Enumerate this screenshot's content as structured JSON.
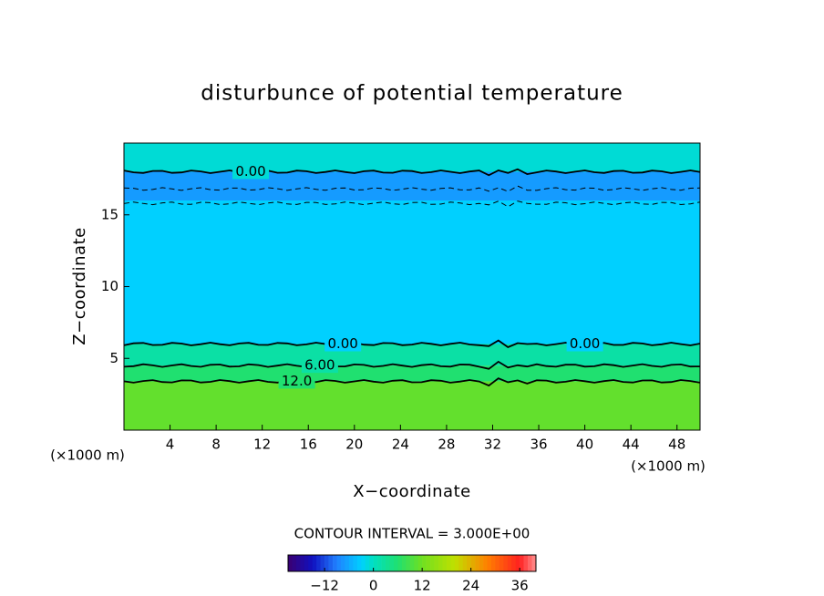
{
  "chart_data": {
    "type": "contour",
    "title": "disturbunce of potential temperature",
    "x_label": "X−coordinate",
    "y_label": "Z−coordinate",
    "x_unit": "(×1000 m)",
    "y_unit": "(×1000 m)",
    "xlim": [
      0,
      50
    ],
    "ylim": [
      0,
      20
    ],
    "xticks": [
      4,
      8,
      12,
      16,
      20,
      24,
      28,
      32,
      36,
      40,
      44,
      48
    ],
    "yticks": [
      5,
      10,
      15
    ],
    "bands": [
      {
        "y0": 0,
        "y1": 3.4,
        "value": 11
      },
      {
        "y0": 3.4,
        "y1": 4.5,
        "value": 6
      },
      {
        "y0": 4.5,
        "y1": 6,
        "value": 2
      },
      {
        "y0": 6,
        "y1": 16,
        "value": -3
      },
      {
        "y0": 16,
        "y1": 18,
        "value": -7
      },
      {
        "y0": 18,
        "y1": 20,
        "value": -1
      }
    ],
    "contours": [
      {
        "level": 12,
        "y": 3.4,
        "label": "12.0"
      },
      {
        "level": 6,
        "y": 4.5,
        "label": "6.00"
      },
      {
        "level": 0,
        "y": 6,
        "label": "0.00"
      },
      {
        "level": -3,
        "y": 15.8
      },
      {
        "level": -3,
        "y": 16.8
      },
      {
        "level": 0,
        "y": 18,
        "label": "0.00"
      }
    ],
    "contour_interval": 3,
    "interval_text": "CONTOUR INTERVAL = 3.000E+00",
    "clim": [
      -21,
      40
    ],
    "colormap": [
      "#3a0070",
      "#1010c0",
      "#2080ff",
      "#00d0ff",
      "#00e0c0",
      "#20e070",
      "#70e020",
      "#c0e000",
      "#ff8000",
      "#ff2020",
      "#ff9090"
    ],
    "colormap_stops": [
      -21,
      -15,
      -9,
      -3,
      0,
      6,
      12,
      20,
      28,
      36,
      40
    ],
    "cticks": [
      {
        "value": -12,
        "label": "−12"
      },
      0,
      12,
      24,
      36
    ]
  }
}
